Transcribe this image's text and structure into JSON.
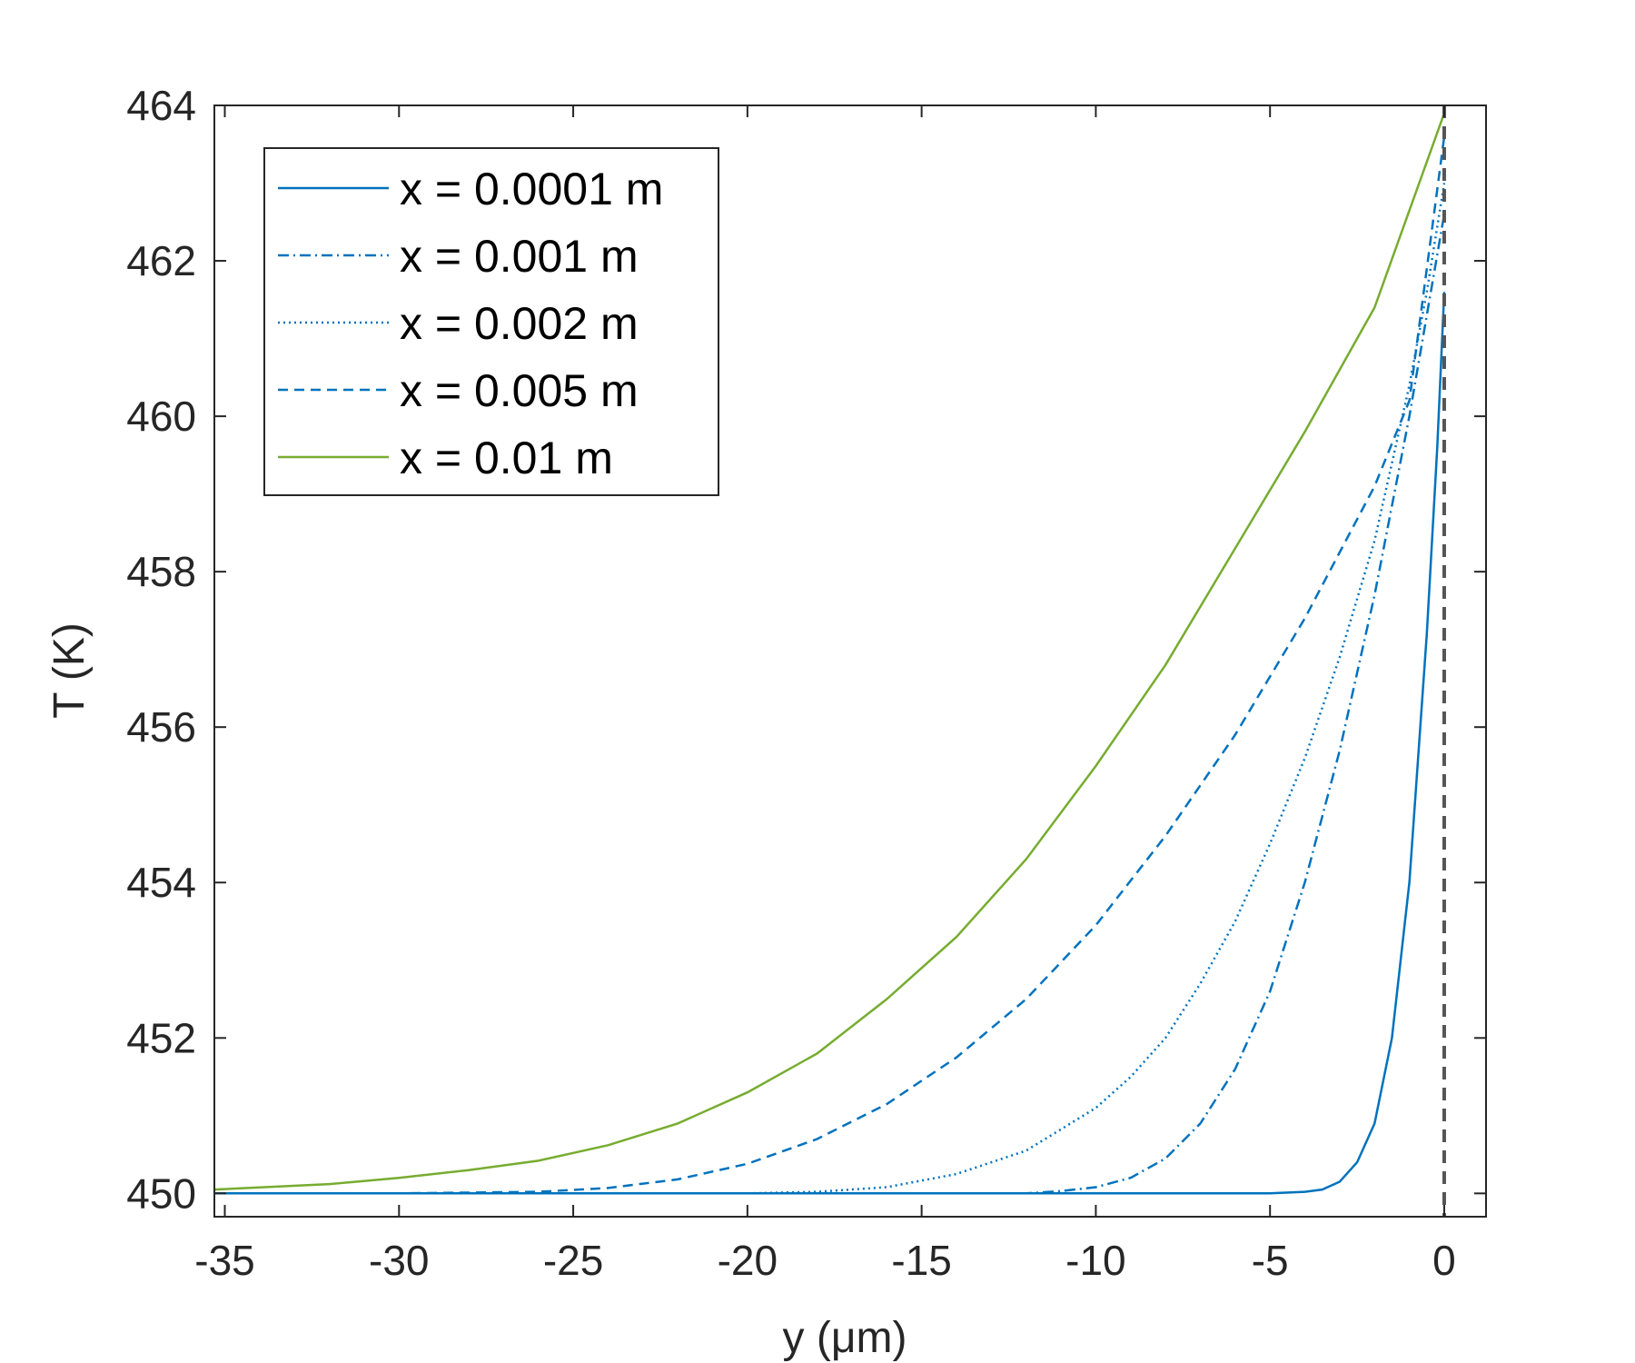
{
  "chart_data": {
    "type": "line",
    "xlabel": "y (μm)",
    "ylabel": "T (K)",
    "xlim": [
      -35.3,
      1.2
    ],
    "ylim": [
      449.7,
      464
    ],
    "xticks": [
      -35,
      -30,
      -25,
      -20,
      -15,
      -10,
      -5,
      0
    ],
    "yticks": [
      450,
      452,
      454,
      456,
      458,
      460,
      462,
      464
    ],
    "x_tick_labels": [
      "-35",
      "-30",
      "-25",
      "-20",
      "-15",
      "-10",
      "-5",
      "0"
    ],
    "y_tick_labels": [
      "450",
      "452",
      "454",
      "456",
      "458",
      "460",
      "462",
      "464"
    ],
    "grid": false,
    "legend_position": "top-left",
    "reference_line": {
      "x": 0,
      "style": "dashed",
      "color": "#555555"
    },
    "series": [
      {
        "name": "x = 0.0001 m",
        "color": "#0072BD",
        "dash": "solid",
        "points": [
          [
            -35.3,
            450
          ],
          [
            -5,
            450
          ],
          [
            -4,
            450.02
          ],
          [
            -3.5,
            450.05
          ],
          [
            -3,
            450.15
          ],
          [
            -2.5,
            450.4
          ],
          [
            -2,
            450.9
          ],
          [
            -1.5,
            452
          ],
          [
            -1,
            454
          ],
          [
            -0.5,
            457.2
          ],
          [
            -0.2,
            459.6
          ],
          [
            0,
            461.6
          ]
        ]
      },
      {
        "name": "x = 0.001 m",
        "color": "#0072BD",
        "dash": "dashdot",
        "points": [
          [
            -35.3,
            450
          ],
          [
            -12,
            450
          ],
          [
            -11,
            450.03
          ],
          [
            -10,
            450.08
          ],
          [
            -9,
            450.2
          ],
          [
            -8,
            450.45
          ],
          [
            -7,
            450.9
          ],
          [
            -6,
            451.6
          ],
          [
            -5,
            452.6
          ],
          [
            -4,
            454
          ],
          [
            -3,
            455.7
          ],
          [
            -2,
            457.7
          ],
          [
            -1,
            460
          ],
          [
            -0.5,
            461.3
          ],
          [
            0,
            462.6
          ]
        ]
      },
      {
        "name": "x = 0.002 m",
        "color": "#0072BD",
        "dash": "dotted",
        "points": [
          [
            -35.3,
            450
          ],
          [
            -20,
            450
          ],
          [
            -18,
            450.02
          ],
          [
            -16,
            450.08
          ],
          [
            -14,
            450.25
          ],
          [
            -12,
            450.55
          ],
          [
            -10,
            451.1
          ],
          [
            -9,
            451.5
          ],
          [
            -8,
            452
          ],
          [
            -7,
            452.7
          ],
          [
            -6,
            453.5
          ],
          [
            -5,
            454.5
          ],
          [
            -4,
            455.6
          ],
          [
            -3,
            456.9
          ],
          [
            -2,
            458.4
          ],
          [
            -1,
            460.4
          ],
          [
            -0.5,
            461.6
          ],
          [
            0,
            463
          ]
        ]
      },
      {
        "name": "x = 0.005 m",
        "color": "#0072BD",
        "dash": "dashed",
        "points": [
          [
            -35.3,
            450
          ],
          [
            -30,
            450
          ],
          [
            -26,
            450.02
          ],
          [
            -24,
            450.07
          ],
          [
            -22,
            450.18
          ],
          [
            -20,
            450.38
          ],
          [
            -18,
            450.7
          ],
          [
            -16,
            451.15
          ],
          [
            -14,
            451.75
          ],
          [
            -12,
            452.5
          ],
          [
            -10,
            453.45
          ],
          [
            -8,
            454.6
          ],
          [
            -6,
            455.9
          ],
          [
            -4,
            457.4
          ],
          [
            -2,
            459.1
          ],
          [
            -1,
            460.2
          ],
          [
            0,
            463.6
          ]
        ]
      },
      {
        "name": "x = 0.01 m",
        "color": "#77AC30",
        "dash": "solid",
        "points": [
          [
            -35.3,
            450.05
          ],
          [
            -32,
            450.12
          ],
          [
            -30,
            450.2
          ],
          [
            -28,
            450.3
          ],
          [
            -26,
            450.42
          ],
          [
            -24,
            450.62
          ],
          [
            -22,
            450.9
          ],
          [
            -20,
            451.3
          ],
          [
            -18,
            451.8
          ],
          [
            -16,
            452.5
          ],
          [
            -14,
            453.3
          ],
          [
            -12,
            454.3
          ],
          [
            -10,
            455.5
          ],
          [
            -8,
            456.8
          ],
          [
            -6,
            458.3
          ],
          [
            -4,
            459.8
          ],
          [
            -2,
            461.4
          ],
          [
            0,
            463.9
          ]
        ]
      }
    ]
  }
}
